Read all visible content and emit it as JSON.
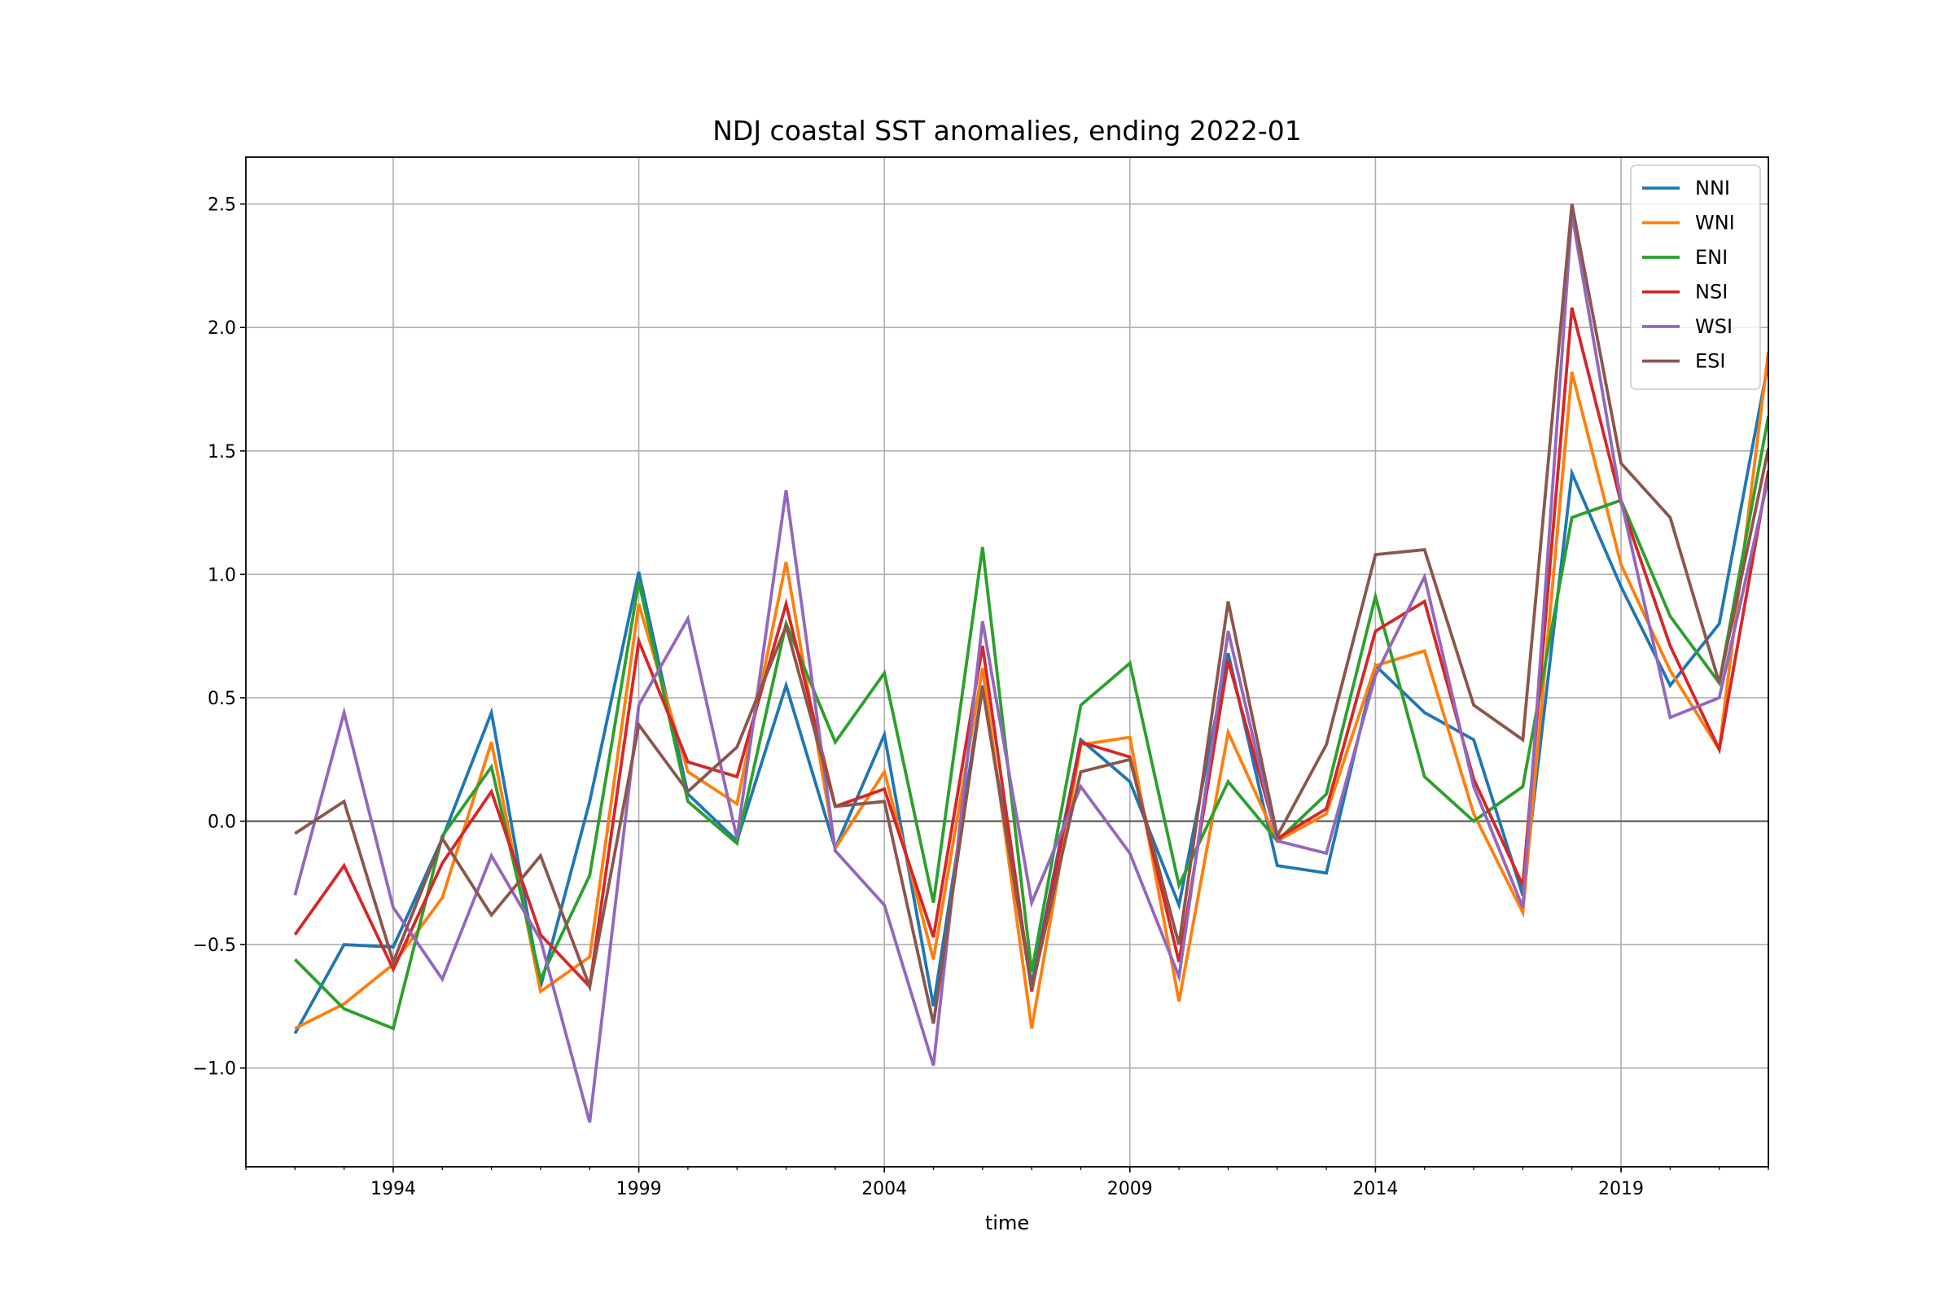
{
  "chart_data": {
    "type": "line",
    "title": "NDJ coastal SST anomalies, ending 2022-01",
    "xlabel": "time",
    "ylabel": "",
    "x_ticks": [
      1994,
      1999,
      2004,
      2009,
      2014,
      2019
    ],
    "x_range": [
      1991,
      2022
    ],
    "y_ticks": [
      -1.0,
      -0.5,
      0.0,
      0.5,
      1.0,
      1.5,
      2.0,
      2.5
    ],
    "y_tick_labels": [
      "−1.0",
      "−0.5",
      "0.0",
      "0.5",
      "1.0",
      "1.5",
      "2.0",
      "2.5"
    ],
    "ylim": [
      -1.4,
      2.69
    ],
    "grid": true,
    "zero_line": true,
    "legend_position": "top-right",
    "x": [
      1992,
      1993,
      1994,
      1995,
      1996,
      1997,
      1998,
      1999,
      2000,
      2001,
      2002,
      2003,
      2004,
      2005,
      2006,
      2007,
      2008,
      2009,
      2010,
      2011,
      2012,
      2013,
      2014,
      2015,
      2016,
      2017,
      2018,
      2019,
      2020,
      2021,
      2022
    ],
    "series": [
      {
        "name": "NNI",
        "color": "#1f77b4",
        "values": [
          -0.86,
          -0.5,
          -0.51,
          -0.07,
          0.44,
          -0.67,
          0.08,
          1.01,
          0.11,
          -0.08,
          0.55,
          -0.11,
          0.35,
          -0.75,
          0.55,
          -0.66,
          0.33,
          0.16,
          -0.34,
          0.68,
          -0.18,
          -0.21,
          0.63,
          0.44,
          0.33,
          -0.3,
          1.41,
          0.95,
          0.55,
          0.8,
          1.86
        ]
      },
      {
        "name": "WNI",
        "color": "#ff7f0e",
        "values": [
          -0.84,
          -0.74,
          -0.58,
          -0.31,
          0.32,
          -0.69,
          -0.55,
          0.88,
          0.2,
          0.07,
          1.05,
          -0.11,
          0.2,
          -0.56,
          0.62,
          -0.84,
          0.31,
          0.34,
          -0.73,
          0.36,
          -0.08,
          0.03,
          0.63,
          0.69,
          0.03,
          -0.37,
          1.82,
          1.04,
          0.61,
          0.29,
          1.9
        ]
      },
      {
        "name": "ENI",
        "color": "#2ca02c",
        "values": [
          -0.56,
          -0.76,
          -0.84,
          -0.06,
          0.22,
          -0.64,
          -0.22,
          0.97,
          0.08,
          -0.09,
          0.8,
          0.32,
          0.6,
          -0.33,
          1.11,
          -0.61,
          0.47,
          0.64,
          -0.26,
          0.16,
          -0.08,
          0.11,
          0.91,
          0.18,
          0.0,
          0.14,
          1.23,
          1.3,
          0.83,
          0.56,
          1.64
        ]
      },
      {
        "name": "NSI",
        "color": "#d62728",
        "values": [
          -0.46,
          -0.18,
          -0.6,
          -0.17,
          0.12,
          -0.46,
          -0.67,
          0.73,
          0.24,
          0.18,
          0.88,
          0.06,
          0.13,
          -0.47,
          0.71,
          -0.69,
          0.32,
          0.26,
          -0.57,
          0.65,
          -0.07,
          0.05,
          0.77,
          0.89,
          0.17,
          -0.26,
          2.08,
          1.29,
          0.71,
          0.29,
          1.42
        ]
      },
      {
        "name": "WSI",
        "color": "#9467bd",
        "values": [
          -0.3,
          0.44,
          -0.35,
          -0.64,
          -0.14,
          -0.48,
          -1.22,
          0.47,
          0.82,
          -0.07,
          1.34,
          -0.12,
          -0.34,
          -0.99,
          0.81,
          -0.33,
          0.14,
          -0.13,
          -0.63,
          0.77,
          -0.08,
          -0.13,
          0.59,
          0.99,
          0.14,
          -0.35,
          2.46,
          1.3,
          0.42,
          0.5,
          1.39
        ]
      },
      {
        "name": "ESI",
        "color": "#8c564b",
        "values": [
          -0.05,
          0.08,
          -0.57,
          -0.07,
          -0.38,
          -0.14,
          -0.67,
          0.39,
          0.12,
          0.3,
          0.79,
          0.06,
          0.08,
          -0.82,
          0.54,
          -0.68,
          0.2,
          0.25,
          -0.5,
          0.89,
          -0.06,
          0.31,
          1.08,
          1.1,
          0.47,
          0.33,
          2.5,
          1.45,
          1.23,
          0.56,
          1.51
        ]
      }
    ]
  }
}
